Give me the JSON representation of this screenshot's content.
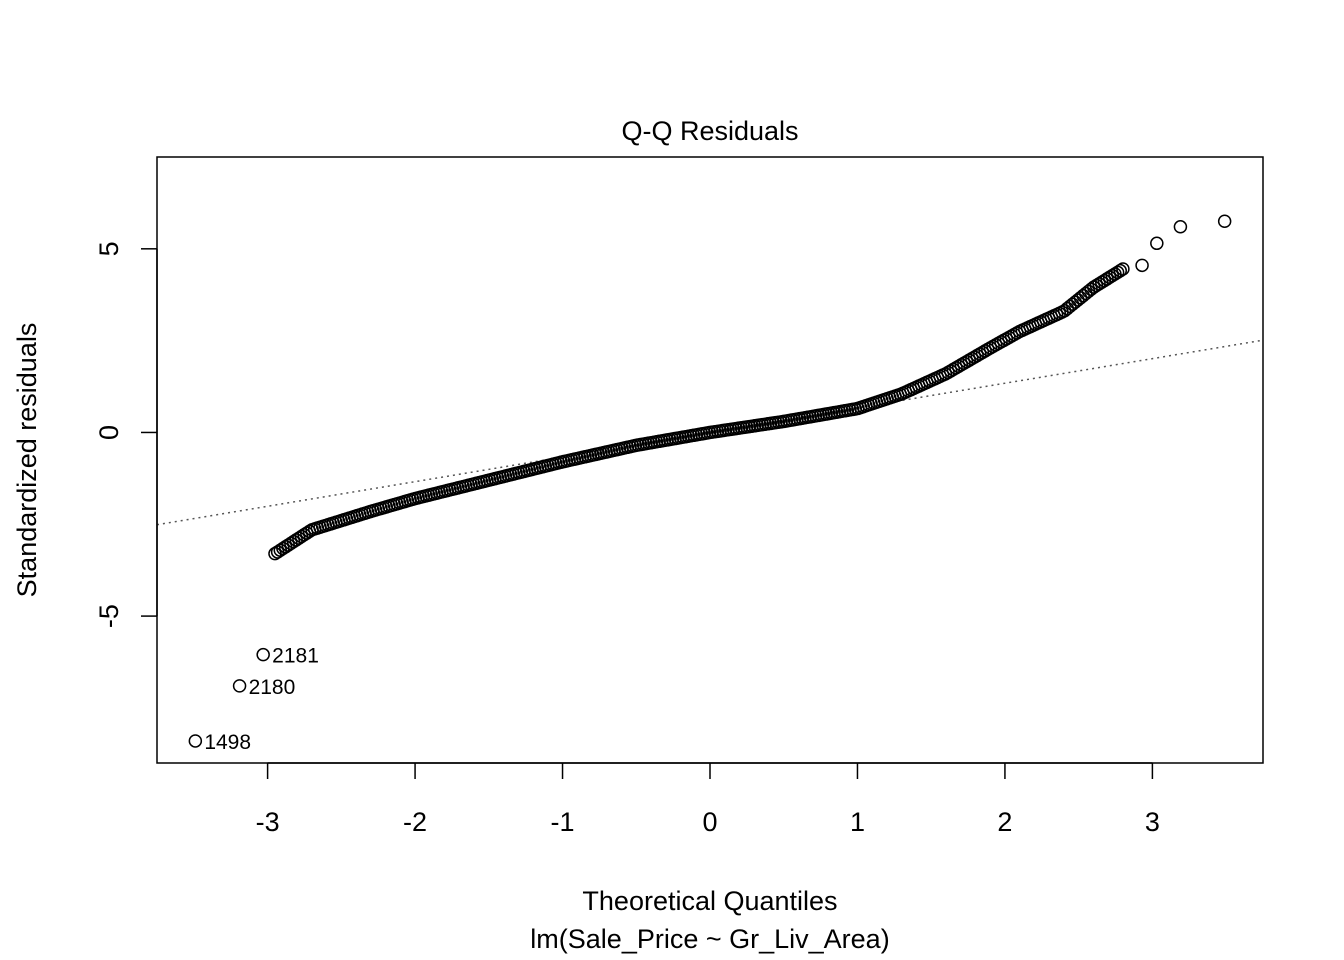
{
  "chart_data": {
    "type": "scatter",
    "title": "Q-Q Residuals",
    "xlabel": "Theoretical Quantiles",
    "subtitle": "lm(Sale_Price ~ Gr_Liv_Area)",
    "ylabel": "Standardized residuals",
    "xlim": [
      -3.75,
      3.75
    ],
    "ylim": [
      -9.0,
      7.5
    ],
    "x_ticks": [
      -3,
      -2,
      -1,
      0,
      1,
      2,
      3
    ],
    "y_ticks": [
      -5,
      0,
      5
    ],
    "grid": false,
    "reference_line": {
      "style": "dotted",
      "color": "#555555",
      "intercept": 0.0,
      "slope": 0.67
    },
    "curve_knots": [
      {
        "x": -2.95,
        "y": -3.3
      },
      {
        "x": -2.7,
        "y": -2.65
      },
      {
        "x": -2.3,
        "y": -2.15
      },
      {
        "x": -2.0,
        "y": -1.8
      },
      {
        "x": -1.6,
        "y": -1.4
      },
      {
        "x": -1.0,
        "y": -0.8
      },
      {
        "x": -0.5,
        "y": -0.35
      },
      {
        "x": 0.0,
        "y": 0.0
      },
      {
        "x": 0.5,
        "y": 0.3
      },
      {
        "x": 1.0,
        "y": 0.65
      },
      {
        "x": 1.3,
        "y": 1.05
      },
      {
        "x": 1.6,
        "y": 1.6
      },
      {
        "x": 1.9,
        "y": 2.3
      },
      {
        "x": 2.1,
        "y": 2.75
      },
      {
        "x": 2.4,
        "y": 3.3
      },
      {
        "x": 2.6,
        "y": 3.95
      },
      {
        "x": 2.8,
        "y": 4.45
      }
    ],
    "tail_points": [
      {
        "x": 2.93,
        "y": 4.55
      },
      {
        "x": 3.03,
        "y": 5.15
      },
      {
        "x": 3.19,
        "y": 5.6
      },
      {
        "x": 3.49,
        "y": 5.75
      }
    ],
    "outliers": [
      {
        "label": "2181",
        "x": -3.03,
        "y": -6.05
      },
      {
        "label": "2180",
        "x": -3.19,
        "y": -6.9
      },
      {
        "label": "1498",
        "x": -3.49,
        "y": -8.4
      }
    ]
  }
}
